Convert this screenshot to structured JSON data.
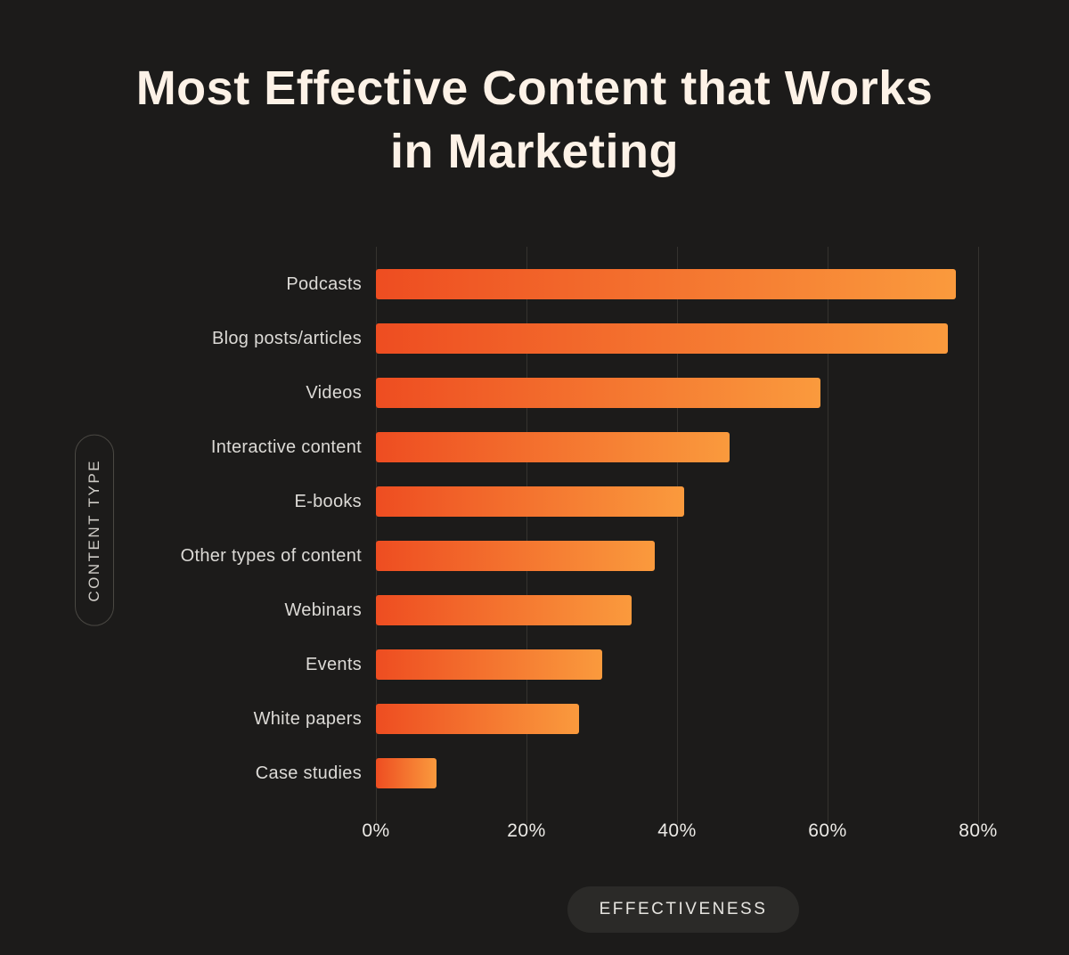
{
  "header": {
    "title_line1": "Most Effective Content that Works",
    "title_line2": "in Marketing"
  },
  "chart_data": {
    "type": "bar",
    "orientation": "horizontal",
    "title": "Most Effective Content that Works in Marketing",
    "categories": [
      "Podcasts",
      "Blog posts/articles",
      "Videos",
      "Interactive content",
      "E-books",
      "Other types of content",
      "Webinars",
      "Events",
      "White papers",
      "Case studies"
    ],
    "values": [
      77,
      76,
      59,
      47,
      41,
      37,
      34,
      30,
      27,
      8
    ],
    "xlabel": "EFFECTIVENESS",
    "ylabel": "CONTENT TYPE",
    "xlim": [
      0,
      80
    ],
    "x_ticks": [
      {
        "label": "0%",
        "value": 0
      },
      {
        "label": "20%",
        "value": 20
      },
      {
        "label": "40%",
        "value": 40
      },
      {
        "label": "60%",
        "value": 60
      },
      {
        "label": "80%",
        "value": 80
      }
    ],
    "grid": "vertical",
    "bar_gradient": [
      "#ee4d21",
      "#fa9a3d"
    ],
    "colors": {
      "background": "#1c1b1a",
      "title_text": "#fdf2e7",
      "label_text": "#dcdad6",
      "gridline": "#35332f"
    }
  }
}
